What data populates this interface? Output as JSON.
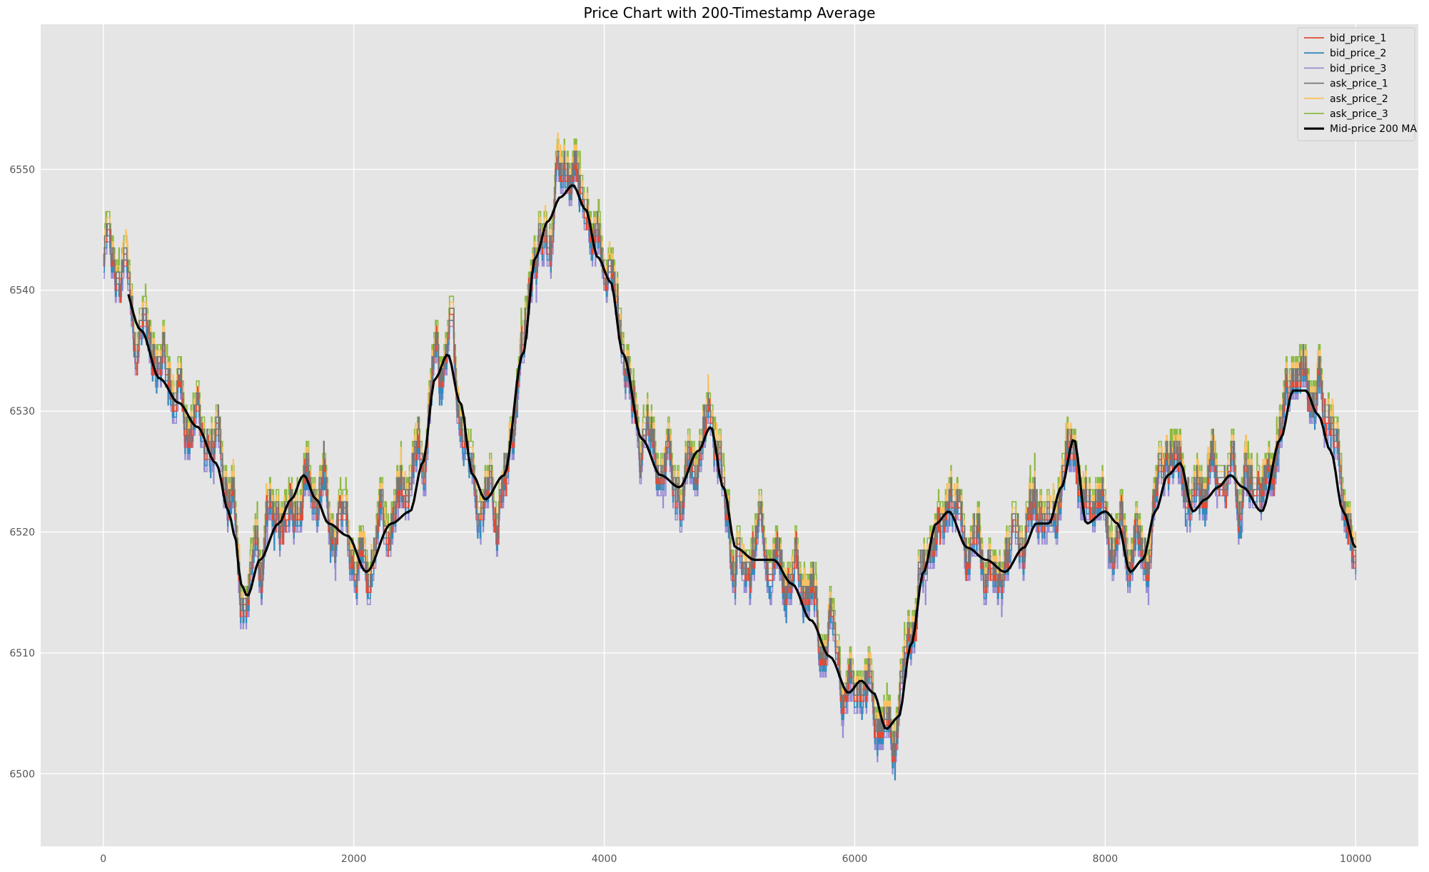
{
  "chart_data": {
    "type": "line",
    "title": "Price Chart with 200-Timestamp Average",
    "xlabel": "",
    "ylabel": "",
    "xlim": [
      -500,
      10500
    ],
    "ylim": [
      6494,
      6562
    ],
    "x_ticks": [
      0,
      2000,
      4000,
      6000,
      8000,
      10000
    ],
    "y_ticks": [
      6500,
      6510,
      6520,
      6530,
      6540,
      6550
    ],
    "grid": true,
    "legend_position": "top-right",
    "series": [
      {
        "name": "bid_price_1",
        "color": "#E24A33",
        "offset": 0
      },
      {
        "name": "bid_price_2",
        "color": "#348ABD",
        "offset": -1
      },
      {
        "name": "bid_price_3",
        "color": "#988ED5",
        "offset": -2
      },
      {
        "name": "ask_price_1",
        "color": "#777777",
        "offset": 1
      },
      {
        "name": "ask_price_2",
        "color": "#FBC15E",
        "offset": 2
      },
      {
        "name": "ask_price_3",
        "color": "#8EBA42",
        "offset": 3
      },
      {
        "name": "Mid-price 200 MA",
        "color": "#000000",
        "bold": true
      }
    ],
    "mid_price_anchors": {
      "x": [
        0,
        150,
        300,
        450,
        600,
        750,
        900,
        1000,
        1050,
        1100,
        1150,
        1250,
        1400,
        1500,
        1600,
        1700,
        1800,
        1950,
        2100,
        2300,
        2450,
        2550,
        2650,
        2750,
        2850,
        2950,
        3050,
        3200,
        3350,
        3450,
        3550,
        3650,
        3750,
        3850,
        3950,
        4050,
        4150,
        4300,
        4450,
        4600,
        4750,
        4850,
        4950,
        5050,
        5200,
        5350,
        5500,
        5650,
        5800,
        5950,
        6050,
        6150,
        6250,
        6350,
        6450,
        6550,
        6650,
        6750,
        6900,
        7050,
        7200,
        7350,
        7450,
        7550,
        7650,
        7750,
        7850,
        8000,
        8100,
        8200,
        8300,
        8400,
        8500,
        8600,
        8700,
        8800,
        8900,
        9000,
        9100,
        9250,
        9400,
        9500,
        9600,
        9700,
        9800,
        9900,
        10000
      ],
      "y": [
        6542,
        6541,
        6537,
        6533,
        6531,
        6529,
        6526,
        6522,
        6520,
        6516,
        6515,
        6518,
        6521,
        6523,
        6525,
        6523,
        6521,
        6520,
        6517,
        6521,
        6522,
        6526,
        6533,
        6535,
        6531,
        6525,
        6523,
        6525,
        6535,
        6543,
        6546,
        6548,
        6549,
        6547,
        6543,
        6541,
        6535,
        6528,
        6525,
        6524,
        6527,
        6529,
        6524,
        6519,
        6518,
        6518,
        6516,
        6513,
        6510,
        6507,
        6508,
        6507,
        6504,
        6505,
        6511,
        6517,
        6521,
        6522,
        6519,
        6518,
        6517,
        6519,
        6521,
        6521,
        6524,
        6528,
        6521,
        6522,
        6521,
        6517,
        6518,
        6522,
        6525,
        6526,
        6522,
        6523,
        6524,
        6525,
        6524,
        6522,
        6528,
        6532,
        6532,
        6530,
        6527,
        6522,
        6519
      ]
    }
  }
}
